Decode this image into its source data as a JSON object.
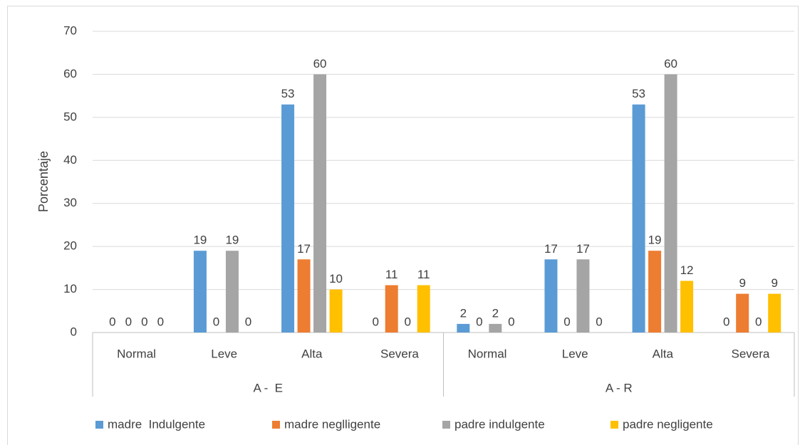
{
  "chart_data": {
    "type": "bar",
    "y_label": "Porcentaje",
    "categories": [
      "Normal",
      "Leve",
      "Alta",
      "Severa",
      "Normal",
      "Leve",
      "Alta",
      "Severa"
    ],
    "groups": [
      "A -  E",
      "A - R"
    ],
    "series": [
      {
        "name": "madre  Indulgente",
        "color": "#5b9bd5",
        "values": [
          0,
          19,
          53,
          0,
          2,
          17,
          53,
          0
        ]
      },
      {
        "name": "madre neglligente",
        "color": "#ed7d31",
        "values": [
          0,
          0,
          17,
          11,
          0,
          0,
          19,
          9
        ]
      },
      {
        "name": "padre indulgente",
        "color": "#a5a5a5",
        "values": [
          0,
          19,
          60,
          0,
          2,
          17,
          60,
          0
        ]
      },
      {
        "name": "padre negligente",
        "color": "#ffc000",
        "values": [
          0,
          0,
          10,
          11,
          0,
          0,
          12,
          9
        ]
      }
    ],
    "ylim": [
      0,
      70
    ],
    "yticks": [
      0,
      10,
      20,
      30,
      40,
      50,
      60,
      70
    ],
    "grid": true,
    "legend": "bottom"
  }
}
